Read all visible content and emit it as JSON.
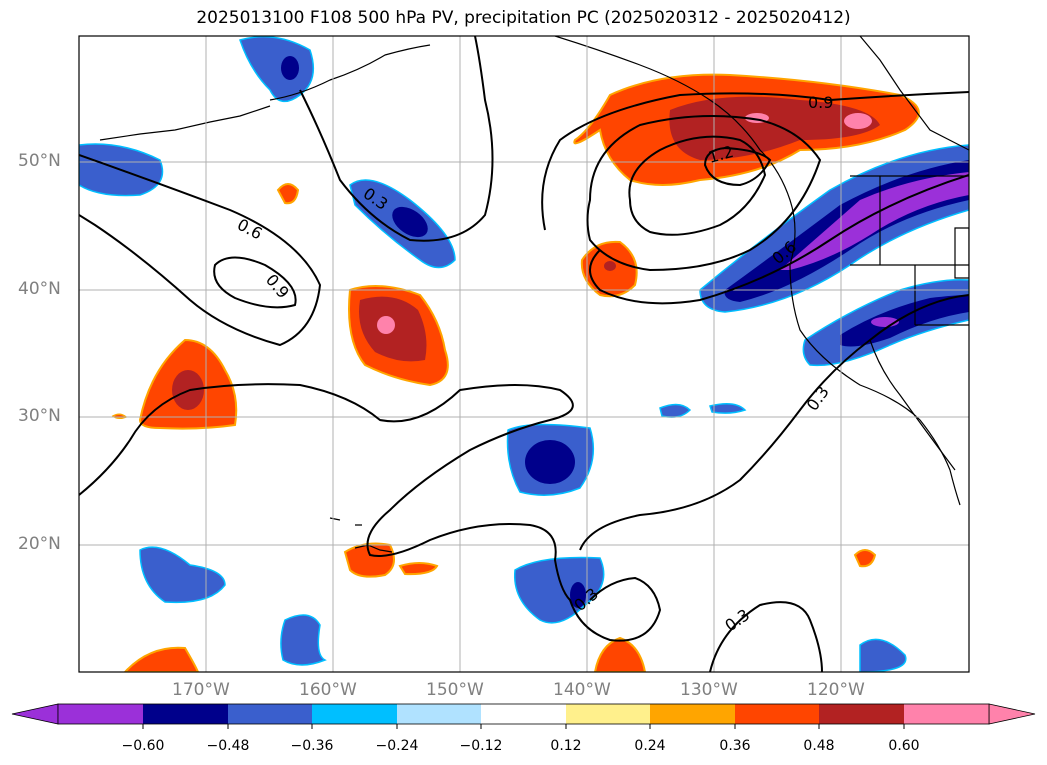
{
  "title": "2025013100 F108 500 hPa PV, precipitation PC (2025020312 - 2025020412)",
  "map": {
    "lat_labels": [
      "50°N",
      "40°N",
      "30°N",
      "20°N"
    ],
    "lon_labels": [
      "170°W",
      "160°W",
      "150°W",
      "140°W",
      "130°W",
      "120°W"
    ],
    "contour_labels": [
      "0.3",
      "0.6",
      "0.9",
      "0.9",
      "1.2",
      "0.6",
      "0.3",
      "0.3",
      "0.3"
    ]
  },
  "colorbar": {
    "ticks": [
      "−0.60",
      "−0.48",
      "−0.36",
      "−0.24",
      "−0.12",
      "0.12",
      "0.24",
      "0.36",
      "0.48",
      "0.60"
    ],
    "colors": [
      "#9b30d9",
      "#00008b",
      "#3a5fcd",
      "#00bfff",
      "#b0e2ff",
      "#ffffff",
      "#fff08c",
      "#ffa500",
      "#ff4500",
      "#b22222",
      "#ff82ab"
    ]
  }
}
